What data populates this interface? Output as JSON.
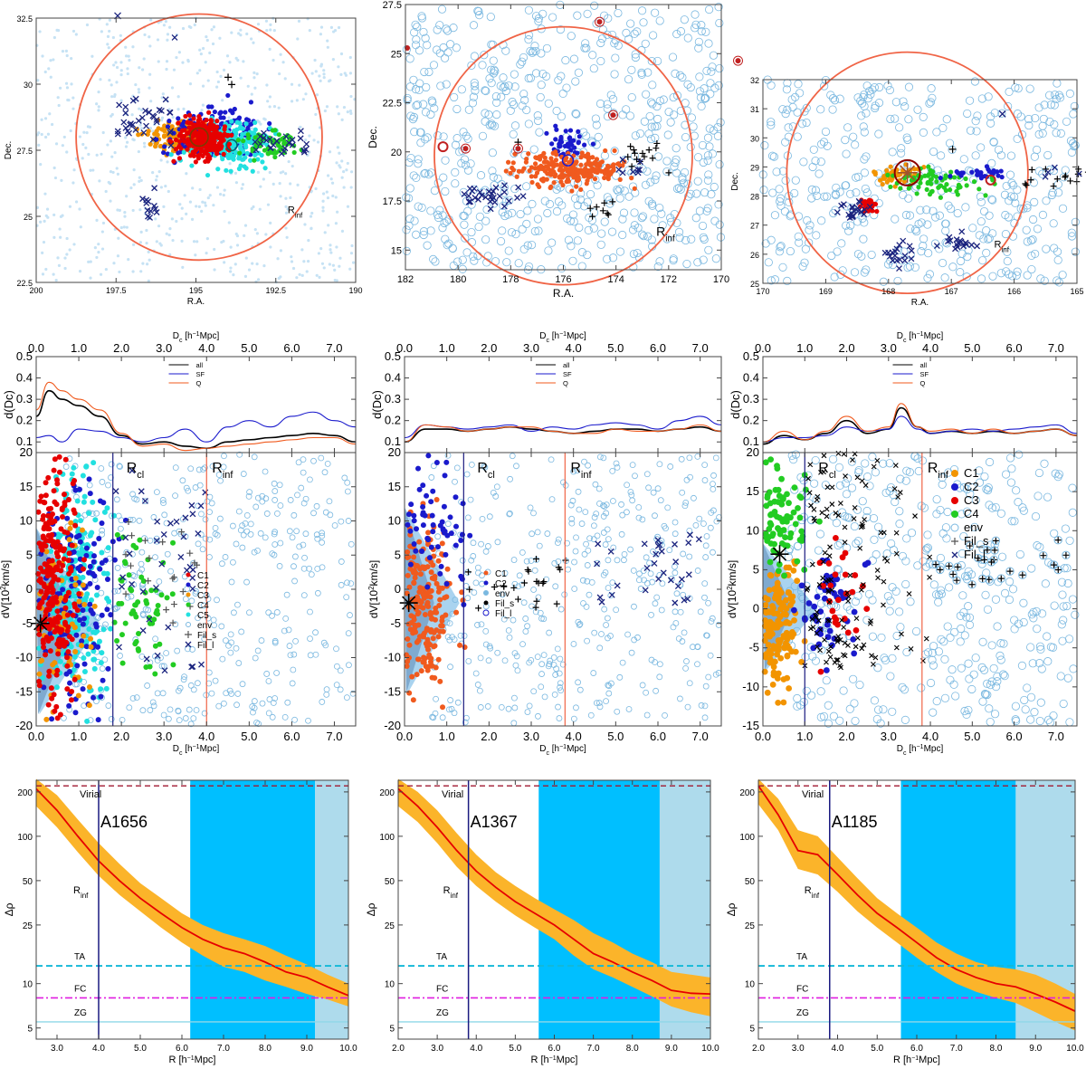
{
  "colors": {
    "rinf_circle": "#f06446",
    "env": "#7ab8e0",
    "C1_A1656": "#e60000",
    "C2": "#1a1acc",
    "C3_A1656": "#f29400",
    "C4": "#22cc22",
    "C5": "#22e0e0",
    "C1_A1367": "#f05a1e",
    "C1_A1185": "#f29400",
    "C3_A1185": "#e60000",
    "fil_cross": "#1a237e",
    "virial": "#a01830",
    "ta": "#12b8d8",
    "fc": "#e01ee0",
    "zg": "#8fd8e8",
    "band_orange": "#fbb42a",
    "median_red": "#e60000",
    "rinf_line": "#1a1a80",
    "fill_dark_blue": "#00bfff",
    "fill_light_blue": "#aedbec",
    "profile_all": "#000000",
    "profile_sf": "#1a1acc",
    "profile_q": "#f05a1e"
  },
  "labels": {
    "ra": "R.A.",
    "dec": "Dec.",
    "rinf": "R",
    "rinf_sub": "inf",
    "rcl": "R",
    "rcl_sub": "cl",
    "dc_axis": "D",
    "dc_sub": "c",
    "dc_unit": " [h",
    "dc_unit2": "−1",
    "dc_unit3": "Mpc]",
    "ddc": "d(Dc)",
    "dv": "dV[10",
    "dv_exp": "2",
    "dv_unit": "km/s]",
    "drho": "Δρ",
    "r_axis": "R [h",
    "r_unit2": "−1",
    "r_unit3": "Mpc]",
    "virial": "Virial",
    "ta": "TA",
    "fc": "FC",
    "zg": "ZG",
    "profile_legend": [
      "all",
      "SF",
      "Q"
    ]
  },
  "chart_data": [
    {
      "type": "scatter",
      "panel": "sky_A1656",
      "xlim": [
        200,
        190
      ],
      "ylim": [
        22.5,
        32.5
      ],
      "xticks": [
        "200",
        "197.5",
        "195",
        "192.5",
        "190"
      ],
      "yticks": [
        "22.5",
        "25",
        "27.5",
        "30",
        "32.5"
      ],
      "xlabel": "R.A.",
      "ylabel": "Dec.",
      "center": [
        194.9,
        28.0
      ],
      "rinf_radius_deg": 3.85
    },
    {
      "type": "scatter",
      "panel": "sky_A1367",
      "xlim": [
        182,
        170
      ],
      "ylim": [
        14,
        27.5
      ],
      "xticks": [
        "182",
        "180",
        "178",
        "176",
        "174",
        "172",
        "170"
      ],
      "yticks": [
        "15",
        "17.5",
        "20",
        "22.5",
        "25",
        "27.5"
      ],
      "xlabel": "R.A.",
      "ylabel": "Dec.",
      "center": [
        176.0,
        19.8
      ],
      "rinf_radius_deg": 4.9
    },
    {
      "type": "scatter",
      "panel": "sky_A1185",
      "xlim": [
        170,
        165
      ],
      "ylim": [
        25,
        32
      ],
      "xticks": [
        "170",
        "169",
        "168",
        "167",
        "166",
        "165"
      ],
      "yticks": [
        "25",
        "26",
        "27",
        "28",
        "29",
        "30",
        "31",
        "32"
      ],
      "xlabel": "R.A.",
      "ylabel": "Dec.",
      "center": [
        167.7,
        28.8
      ],
      "rinf_radius_deg": 1.92
    },
    {
      "type": "line",
      "panel": "profile_A1656",
      "xlim": [
        0,
        7.5
      ],
      "ylim": [
        0.05,
        0.5
      ],
      "xticks": [
        "0.0",
        "1.0",
        "2.0",
        "3.0",
        "4.0",
        "5.0",
        "6.0",
        "7.0"
      ],
      "yticks": [
        "0.1",
        "0.2",
        "0.3",
        "0.4",
        "0.5"
      ],
      "x": [
        0,
        0.3,
        0.6,
        1.0,
        1.5,
        2.0,
        2.5,
        3.0,
        3.5,
        4.0,
        4.5,
        5.0,
        5.5,
        6.0,
        6.5,
        7.0,
        7.5
      ],
      "series": [
        {
          "name": "all",
          "values": [
            0.22,
            0.34,
            0.3,
            0.27,
            0.22,
            0.13,
            0.09,
            0.1,
            0.08,
            0.07,
            0.1,
            0.11,
            0.12,
            0.13,
            0.14,
            0.13,
            0.1
          ]
        },
        {
          "name": "SF",
          "values": [
            0.12,
            0.13,
            0.1,
            0.16,
            0.15,
            0.12,
            0.1,
            0.12,
            0.16,
            0.1,
            0.17,
            0.2,
            0.17,
            0.22,
            0.24,
            0.2,
            0.17
          ]
        },
        {
          "name": "Q",
          "values": [
            0.25,
            0.38,
            0.34,
            0.3,
            0.25,
            0.14,
            0.08,
            0.09,
            0.06,
            0.07,
            0.08,
            0.09,
            0.1,
            0.11,
            0.12,
            0.12,
            0.09
          ]
        }
      ]
    },
    {
      "type": "line",
      "panel": "profile_A1367",
      "xlim": [
        0,
        7.5
      ],
      "ylim": [
        0.05,
        0.5
      ],
      "xticks": [
        "0.0",
        "1.0",
        "2.0",
        "3.0",
        "4.0",
        "5.0",
        "6.0",
        "7.0"
      ],
      "yticks": [
        "0.1",
        "0.2",
        "0.3",
        "0.4",
        "0.5"
      ],
      "x": [
        0,
        0.5,
        1.0,
        1.5,
        2.0,
        2.5,
        3.0,
        3.5,
        4.0,
        4.5,
        5.0,
        5.5,
        6.0,
        6.5,
        7.0,
        7.5
      ],
      "series": [
        {
          "name": "all",
          "values": [
            0.1,
            0.16,
            0.16,
            0.15,
            0.16,
            0.17,
            0.16,
            0.15,
            0.14,
            0.15,
            0.16,
            0.16,
            0.15,
            0.16,
            0.17,
            0.15
          ]
        },
        {
          "name": "SF",
          "values": [
            0.12,
            0.18,
            0.17,
            0.16,
            0.17,
            0.18,
            0.15,
            0.17,
            0.16,
            0.18,
            0.19,
            0.18,
            0.16,
            0.2,
            0.22,
            0.18
          ]
        },
        {
          "name": "Q",
          "values": [
            0.1,
            0.18,
            0.17,
            0.15,
            0.16,
            0.17,
            0.17,
            0.15,
            0.14,
            0.14,
            0.16,
            0.15,
            0.15,
            0.16,
            0.18,
            0.15
          ]
        }
      ]
    },
    {
      "type": "line",
      "panel": "profile_A1185",
      "xlim": [
        0,
        7.5
      ],
      "ylim": [
        0.05,
        0.5
      ],
      "xticks": [
        "0.0",
        "1.0",
        "2.0",
        "3.0",
        "4.0",
        "5.0",
        "6.0",
        "7.0"
      ],
      "yticks": [
        "0.1",
        "0.2",
        "0.3",
        "0.4",
        "0.5"
      ],
      "x": [
        0,
        0.5,
        1.0,
        1.5,
        2.0,
        2.5,
        3.0,
        3.3,
        3.7,
        4.0,
        4.5,
        5.0,
        5.5,
        6.0,
        6.5,
        7.0,
        7.5
      ],
      "series": [
        {
          "name": "all",
          "values": [
            0.09,
            0.13,
            0.11,
            0.14,
            0.2,
            0.14,
            0.16,
            0.26,
            0.17,
            0.14,
            0.15,
            0.14,
            0.15,
            0.14,
            0.15,
            0.16,
            0.13
          ]
        },
        {
          "name": "SF",
          "values": [
            0.1,
            0.12,
            0.12,
            0.13,
            0.17,
            0.15,
            0.16,
            0.22,
            0.16,
            0.14,
            0.15,
            0.16,
            0.15,
            0.16,
            0.17,
            0.18,
            0.14
          ]
        },
        {
          "name": "Q",
          "values": [
            0.1,
            0.15,
            0.11,
            0.15,
            0.22,
            0.15,
            0.17,
            0.28,
            0.17,
            0.15,
            0.16,
            0.14,
            0.16,
            0.14,
            0.15,
            0.16,
            0.13
          ]
        }
      ]
    },
    {
      "type": "scatter",
      "panel": "phase_A1656",
      "xlim": [
        0,
        7.5
      ],
      "ylim": [
        -20,
        20
      ],
      "xticks": [
        "0.0",
        "1.0",
        "2.0",
        "3.0",
        "4.0",
        "5.0",
        "6.0",
        "7.0"
      ],
      "yticks": [
        "-20",
        "-15",
        "-10",
        "-5",
        "0",
        "5",
        "10",
        "15",
        "20"
      ],
      "rcl": 1.8,
      "rinf": 4.0,
      "legend": [
        "C1",
        "C2",
        "C3",
        "C4",
        "C5",
        "env",
        "Fil_s",
        "Fil_l"
      ]
    },
    {
      "type": "scatter",
      "panel": "phase_A1367",
      "xlim": [
        0,
        7.5
      ],
      "ylim": [
        -20,
        20
      ],
      "xticks": [
        "0.0",
        "1.0",
        "2.0",
        "3.0",
        "4.0",
        "5.0",
        "6.0",
        "7.0"
      ],
      "yticks": [
        "-20",
        "-15",
        "-10",
        "-5",
        "0",
        "5",
        "10",
        "15",
        "20"
      ],
      "rcl": 1.4,
      "rinf": 3.8,
      "legend": [
        "C1",
        "C2",
        "env",
        "Fil_s",
        "Fil_l"
      ]
    },
    {
      "type": "scatter",
      "panel": "phase_A1185",
      "xlim": [
        0,
        7.5
      ],
      "ylim": [
        -15,
        20
      ],
      "xticks": [
        "0.0",
        "1.0",
        "2.0",
        "3.0",
        "4.0",
        "5.0",
        "6.0",
        "7.0"
      ],
      "yticks": [
        "-15",
        "-10",
        "-5",
        "0",
        "5",
        "10",
        "15",
        "20"
      ],
      "rcl": 1.0,
      "rinf": 3.8,
      "legend": [
        "C1",
        "C2",
        "C3",
        "C4",
        "env",
        "Fil_s",
        "Fil_l"
      ]
    },
    {
      "type": "area",
      "panel": "density_A1656",
      "title": "A1656",
      "xlim": [
        2.5,
        10.0
      ],
      "ylim_log": [
        4.2,
        240
      ],
      "xticks": [
        "3.0",
        "4.0",
        "5.0",
        "6.0",
        "7.0",
        "8.0",
        "9.0",
        "10.0"
      ],
      "yticks": [
        "5",
        "10",
        "25",
        "50",
        "100",
        "200"
      ],
      "x": [
        2.5,
        3.0,
        3.5,
        4.0,
        4.5,
        5.0,
        5.5,
        6.0,
        6.5,
        7.0,
        7.5,
        8.0,
        8.5,
        9.0,
        9.5,
        10.0
      ],
      "median": [
        210,
        150,
        100,
        68,
        50,
        38,
        30,
        24,
        20,
        17.5,
        16,
        14,
        12,
        11,
        9.5,
        8.3
      ],
      "lower": [
        160,
        115,
        78,
        54,
        40,
        31,
        24,
        19,
        15.5,
        13,
        12,
        10.5,
        9.5,
        8.5,
        7.8,
        7.0
      ],
      "upper": [
        245,
        190,
        130,
        90,
        65,
        48,
        38,
        30,
        25,
        22,
        20,
        18,
        15.5,
        13.5,
        11.5,
        10
      ],
      "virial": 220,
      "ta": 13.2,
      "fc": 8.0,
      "zg": 5.5,
      "rinf": 4.0,
      "fill_dark": [
        6.2,
        9.2
      ],
      "fill_light": [
        9.2,
        10.0
      ]
    },
    {
      "type": "area",
      "panel": "density_A1367",
      "title": "A1367",
      "xlim": [
        2.0,
        10.0
      ],
      "ylim_log": [
        4.2,
        240
      ],
      "xticks": [
        "2.0",
        "3.0",
        "4.0",
        "5.0",
        "6.0",
        "7.0",
        "8.0",
        "9.0",
        "10.0"
      ],
      "yticks": [
        "5",
        "10",
        "25",
        "50",
        "100",
        "200"
      ],
      "x": [
        2.0,
        2.5,
        3.0,
        3.5,
        4.0,
        4.5,
        5.0,
        5.5,
        6.0,
        6.5,
        7.0,
        7.5,
        8.0,
        8.5,
        9.0,
        9.5,
        10.0
      ],
      "median": [
        210,
        160,
        115,
        80,
        58,
        45,
        36,
        30,
        25,
        20,
        16,
        14,
        12,
        10.5,
        9,
        8.6,
        8.5
      ],
      "lower": [
        160,
        125,
        90,
        62,
        46,
        36,
        29,
        24,
        20,
        15.5,
        12.5,
        11,
        9.5,
        8.2,
        7.0,
        6.4,
        6.0
      ],
      "upper": [
        245,
        200,
        150,
        105,
        75,
        57,
        46,
        38,
        32,
        27,
        22,
        19,
        16,
        14,
        12,
        11.5,
        11
      ]
    },
    {
      "type": "area",
      "panel": "density_A1185",
      "title": "A1185",
      "xlim": [
        2.0,
        10.0
      ],
      "ylim_log": [
        4.2,
        240
      ],
      "xticks": [
        "2.0",
        "3.0",
        "4.0",
        "5.0",
        "6.0",
        "7.0",
        "8.0",
        "9.0",
        "10.0"
      ],
      "yticks": [
        "5",
        "10",
        "25",
        "50",
        "100",
        "200"
      ],
      "x": [
        2.0,
        2.5,
        3.0,
        3.5,
        4.0,
        4.5,
        5.0,
        5.5,
        6.0,
        6.5,
        7.0,
        7.5,
        8.0,
        8.5,
        9.0,
        9.5,
        10.0
      ],
      "median": [
        220,
        140,
        80,
        75,
        55,
        40,
        30,
        24,
        19,
        15,
        12.5,
        11,
        10,
        9.5,
        8.5,
        7.5,
        6.5
      ],
      "lower": [
        165,
        110,
        60,
        55,
        42,
        31,
        24,
        19,
        15,
        12,
        10,
        8.8,
        8.0,
        7.4,
        6.4,
        5.5,
        4.8
      ],
      "upper": [
        245,
        180,
        110,
        100,
        72,
        52,
        38,
        30,
        24,
        19,
        16,
        14,
        13,
        12.5,
        11.5,
        10,
        8.5
      ]
    }
  ]
}
